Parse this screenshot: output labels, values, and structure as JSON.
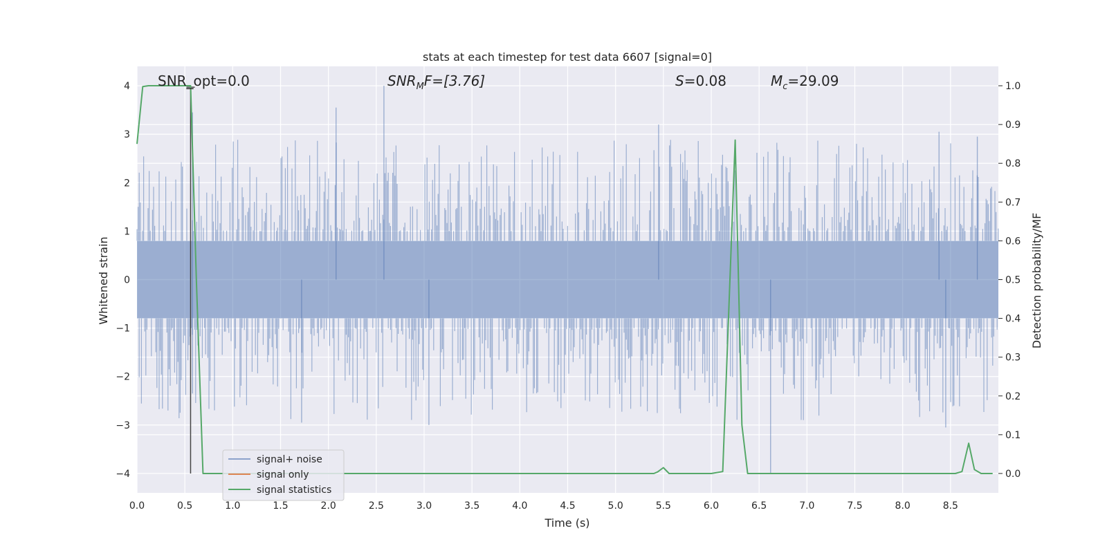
{
  "chart_data": {
    "type": "line",
    "title": "stats at each timestep for test data 6607 [signal=0]",
    "xlabel": "Time (s)",
    "ylabel": "Whitened strain",
    "y2label": "Detection probability/MF",
    "xlim": [
      0.0,
      9.0
    ],
    "ylim": [
      -4.4,
      4.4
    ],
    "y2lim": [
      -0.05,
      1.05
    ],
    "xticks": [
      0.0,
      0.5,
      1.0,
      1.5,
      2.0,
      2.5,
      3.0,
      3.5,
      4.0,
      4.5,
      5.0,
      5.5,
      6.0,
      6.5,
      7.0,
      7.5,
      8.0,
      8.5
    ],
    "xtick_labels": [
      "0.0",
      "0.5",
      "1.0",
      "1.5",
      "2.0",
      "2.5",
      "3.0",
      "3.5",
      "4.0",
      "4.5",
      "5.0",
      "5.5",
      "6.0",
      "6.5",
      "7.0",
      "7.5",
      "8.0",
      "8.5"
    ],
    "yticks": [
      4,
      3,
      2,
      1,
      0,
      -1,
      -2,
      -3,
      -4
    ],
    "ytick_labels": [
      "4",
      "3",
      "2",
      "1",
      "0",
      "−1",
      "−2",
      "−3",
      "−4"
    ],
    "y2ticks": [
      1.0,
      0.9,
      0.8,
      0.7,
      0.6,
      0.5,
      0.4,
      0.3,
      0.2,
      0.1,
      0.0
    ],
    "y2tick_labels": [
      "1.0",
      "0.9",
      "0.8",
      "0.7",
      "0.6",
      "0.5",
      "0.4",
      "0.3",
      "0.2",
      "0.1",
      "0.0"
    ],
    "grid": true,
    "legend_position": "lower-left",
    "annotations": {
      "snr_opt": "SNR_opt=0.0",
      "snr_mf_italic": "SNR",
      "snr_mf_sub": "M",
      "snr_mf_rest": "F=[3.76]",
      "s_var": "S",
      "s_rest": "=0.08",
      "mc_var": "M",
      "mc_sub": "c",
      "mc_rest": "=29.09"
    },
    "marker_time": 0.56,
    "series": [
      {
        "name": "signal+ noise",
        "color": "#4c72b0",
        "axis": "left",
        "kind": "noise",
        "duration": 9.0,
        "core_amplitude": 0.8,
        "peaks": [
          {
            "x": 0.58,
            "y": 3.45
          },
          {
            "x": 0.58,
            "y": -2.35
          },
          {
            "x": 2.08,
            "y": 3.55
          },
          {
            "x": 2.58,
            "y": 4.0
          },
          {
            "x": 1.72,
            "y": -2.95
          },
          {
            "x": 3.05,
            "y": -3.0
          },
          {
            "x": 5.45,
            "y": 3.2
          },
          {
            "x": 6.62,
            "y": -4.0
          },
          {
            "x": 8.38,
            "y": 3.05
          },
          {
            "x": 8.45,
            "y": -3.05
          },
          {
            "x": 8.78,
            "y": 2.95
          }
        ]
      },
      {
        "name": "signal only",
        "color": "#dd8452",
        "axis": "left",
        "kind": "line",
        "x": [
          0.56,
          0.56
        ],
        "y": [
          -4.0,
          4.0
        ]
      },
      {
        "name": "signal statistics",
        "color": "#55a868",
        "axis": "right",
        "kind": "line",
        "x": [
          0.0,
          0.06,
          0.12,
          0.2,
          0.3,
          0.4,
          0.5,
          0.56,
          0.62,
          0.69,
          0.75,
          1.0,
          2.0,
          3.0,
          4.0,
          5.0,
          5.4,
          5.44,
          5.5,
          5.56,
          6.0,
          6.12,
          6.25,
          6.32,
          6.38,
          6.5,
          7.0,
          8.0,
          8.55,
          8.62,
          8.69,
          8.75,
          8.82,
          8.94
        ],
        "y": [
          0.85,
          0.998,
          1.0,
          1.0,
          1.0,
          1.0,
          1.0,
          1.0,
          0.5,
          0.0,
          0.0,
          0.0,
          0.0,
          0.0,
          0.0,
          0.0,
          0.0,
          0.004,
          0.015,
          0.0,
          0.0,
          0.005,
          0.86,
          0.125,
          0.0,
          0.0,
          0.0,
          0.0,
          0.0,
          0.005,
          0.078,
          0.01,
          0.0,
          0.0
        ]
      }
    ]
  }
}
